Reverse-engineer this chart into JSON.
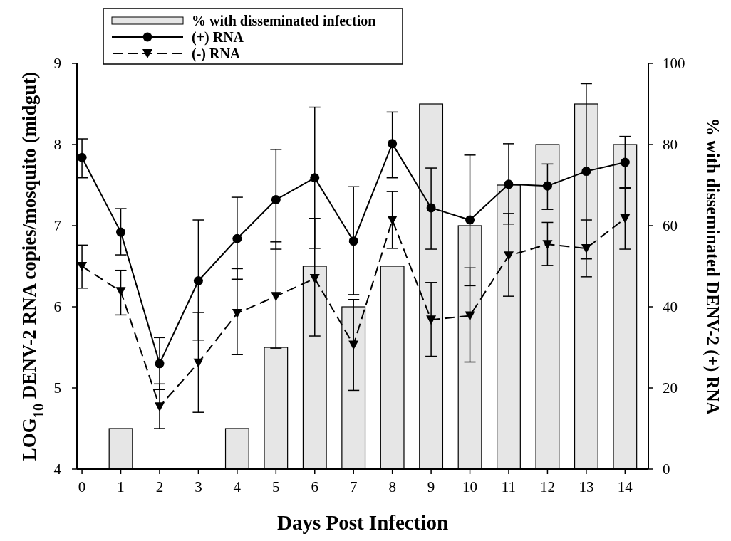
{
  "chart_data": {
    "type": "line",
    "xlabel": "Days Post Infection",
    "ylabel": "LOG$_{10}$ DENV-2 RNA copies/mosquito (midgut)",
    "y2label": "% with disseminated DENV-2 (+) RNA",
    "x": [
      0,
      1,
      2,
      3,
      4,
      5,
      6,
      7,
      8,
      9,
      10,
      11,
      12,
      13,
      14
    ],
    "xlim": [
      -0.13,
      14.6
    ],
    "xticks": [
      0,
      1,
      2,
      3,
      4,
      5,
      6,
      7,
      8,
      9,
      10,
      11,
      12,
      13,
      14
    ],
    "ylim": [
      4,
      9
    ],
    "yticks": [
      4,
      5,
      6,
      7,
      8,
      9
    ],
    "y2lim": [
      0,
      100
    ],
    "y2ticks": [
      0,
      20,
      40,
      60,
      80,
      100
    ],
    "grid": false,
    "legend": "top left",
    "series": [
      {
        "name": "% with disseminated infection",
        "type": "bar",
        "axis": "y2",
        "color": "#e6e6e6",
        "values": [
          0,
          10,
          0,
          0,
          10,
          30,
          50,
          40,
          50,
          90,
          60,
          70,
          80,
          90,
          80
        ]
      },
      {
        "name": "(+) RNA",
        "color": "#000000",
        "marker": "circle",
        "line_style": "solid",
        "values": [
          7.84,
          6.92,
          5.3,
          6.32,
          6.84,
          7.32,
          7.59,
          6.81,
          8.01,
          7.22,
          7.07,
          7.51,
          7.49,
          7.67,
          7.78
        ],
        "errors": [
          [
            7.59,
            8.07
          ],
          [
            6.64,
            7.21
          ],
          [
            4.98,
            5.62
          ],
          [
            5.59,
            7.07
          ],
          [
            6.34,
            7.35
          ],
          [
            6.71,
            7.94
          ],
          [
            6.72,
            8.46
          ],
          [
            6.15,
            7.48
          ],
          [
            7.59,
            8.4
          ],
          [
            6.71,
            7.71
          ],
          [
            6.26,
            7.87
          ],
          [
            7.02,
            8.01
          ],
          [
            7.2,
            7.76
          ],
          [
            6.59,
            8.75
          ],
          [
            7.47,
            8.1
          ]
        ]
      },
      {
        "name": "(-) RNA",
        "color": "#000000",
        "marker": "triangle",
        "line_style": "dashed",
        "values": [
          6.5,
          6.19,
          4.77,
          5.31,
          5.92,
          6.13,
          6.35,
          5.53,
          7.07,
          5.84,
          5.89,
          6.63,
          6.77,
          6.72,
          7.09
        ],
        "errors": [
          [
            6.23,
            6.76
          ],
          [
            5.9,
            6.45
          ],
          [
            4.5,
            5.05
          ],
          [
            4.7,
            5.93
          ],
          [
            5.41,
            6.47
          ],
          [
            5.49,
            6.8
          ],
          [
            5.64,
            7.09
          ],
          [
            4.97,
            6.09
          ],
          [
            6.72,
            7.42
          ],
          [
            5.39,
            6.3
          ],
          [
            5.32,
            6.48
          ],
          [
            6.13,
            7.15
          ],
          [
            6.51,
            7.04
          ],
          [
            6.37,
            7.07
          ],
          [
            6.71,
            7.46
          ]
        ]
      }
    ]
  }
}
